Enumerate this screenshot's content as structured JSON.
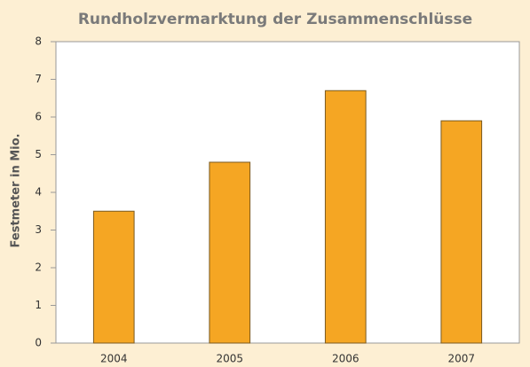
{
  "chart_data": {
    "type": "bar",
    "title": "Rundholzvermarktung der Zusammenschlüsse",
    "y_label": "Festmeter in Mio.",
    "categories": [
      "2004",
      "2005",
      "2006",
      "2007"
    ],
    "values": [
      3.5,
      4.8,
      6.7,
      5.9
    ],
    "color": "#f5a623",
    "ylim": [
      0,
      8
    ],
    "yticks": [
      0,
      1,
      2,
      3,
      4,
      5,
      6,
      7,
      8
    ],
    "grid": false
  }
}
